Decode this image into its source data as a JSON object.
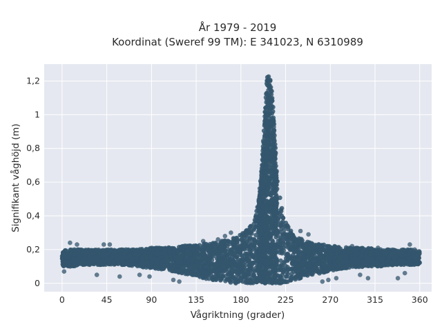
{
  "chart_data": {
    "type": "scatter",
    "title_line1": "År 1979 - 2019",
    "title_line2": "Koordinat (Sweref 99 TM): E 341023, N 6310989",
    "xlabel": "Vågriktning (grader)",
    "ylabel": "Signifikant våghöjd (m)",
    "xlim": [
      -18,
      372
    ],
    "ylim": [
      -0.05,
      1.3
    ],
    "xticks": [
      0,
      45,
      90,
      135,
      180,
      225,
      270,
      315,
      360
    ],
    "xtick_labels": [
      "0",
      "45",
      "90",
      "135",
      "180",
      "225",
      "270",
      "315",
      "360"
    ],
    "yticks": [
      0,
      0.2,
      0.4,
      0.6,
      0.8,
      1.0,
      1.2
    ],
    "ytick_labels": [
      "0",
      "0,2",
      "0,4",
      "0,6",
      "0,8",
      "1",
      "1,2"
    ],
    "grid": true,
    "colors": {
      "marker": "#34566d",
      "plot_bg": "#e5e8f0",
      "grid": "#ffffff"
    },
    "envelope": {
      "x": [
        0,
        10,
        20,
        30,
        45,
        60,
        75,
        90,
        105,
        120,
        135,
        150,
        160,
        170,
        180,
        185,
        190,
        195,
        198,
        201,
        204,
        206,
        208,
        210,
        212,
        215,
        218,
        222,
        228,
        235,
        245,
        260,
        275,
        290,
        305,
        320,
        335,
        350,
        360
      ],
      "upper": [
        0.2,
        0.2,
        0.2,
        0.2,
        0.2,
        0.2,
        0.2,
        0.21,
        0.21,
        0.22,
        0.23,
        0.24,
        0.25,
        0.27,
        0.29,
        0.31,
        0.34,
        0.4,
        0.5,
        0.7,
        1.0,
        1.2,
        1.27,
        1.22,
        1.1,
        0.78,
        0.56,
        0.42,
        0.33,
        0.28,
        0.25,
        0.23,
        0.22,
        0.21,
        0.21,
        0.2,
        0.2,
        0.2,
        0.19
      ],
      "lower": [
        0.1,
        0.1,
        0.11,
        0.11,
        0.11,
        0.11,
        0.1,
        0.09,
        0.08,
        0.06,
        0.04,
        0.02,
        0.01,
        0.0,
        0.0,
        0.0,
        0.0,
        0.0,
        0.0,
        0.0,
        0.0,
        0.0,
        0.0,
        0.0,
        0.0,
        0.0,
        0.0,
        0.0,
        0.01,
        0.02,
        0.04,
        0.06,
        0.08,
        0.09,
        0.1,
        0.1,
        0.11,
        0.11,
        0.11
      ]
    },
    "outliers": [
      [
        2,
        0.07
      ],
      [
        8,
        0.24
      ],
      [
        15,
        0.23
      ],
      [
        35,
        0.05
      ],
      [
        42,
        0.23
      ],
      [
        48,
        0.23
      ],
      [
        58,
        0.04
      ],
      [
        78,
        0.05
      ],
      [
        88,
        0.04
      ],
      [
        112,
        0.02
      ],
      [
        118,
        0.01
      ],
      [
        125,
        0.22
      ],
      [
        142,
        0.25
      ],
      [
        157,
        0.26
      ],
      [
        164,
        0.28
      ],
      [
        170,
        0.3
      ],
      [
        240,
        0.31
      ],
      [
        248,
        0.29
      ],
      [
        262,
        0.01
      ],
      [
        268,
        0.02
      ],
      [
        276,
        0.03
      ],
      [
        292,
        0.22
      ],
      [
        300,
        0.05
      ],
      [
        308,
        0.03
      ],
      [
        318,
        0.21
      ],
      [
        338,
        0.03
      ],
      [
        345,
        0.06
      ],
      [
        350,
        0.23
      ],
      [
        355,
        0.2
      ]
    ]
  }
}
